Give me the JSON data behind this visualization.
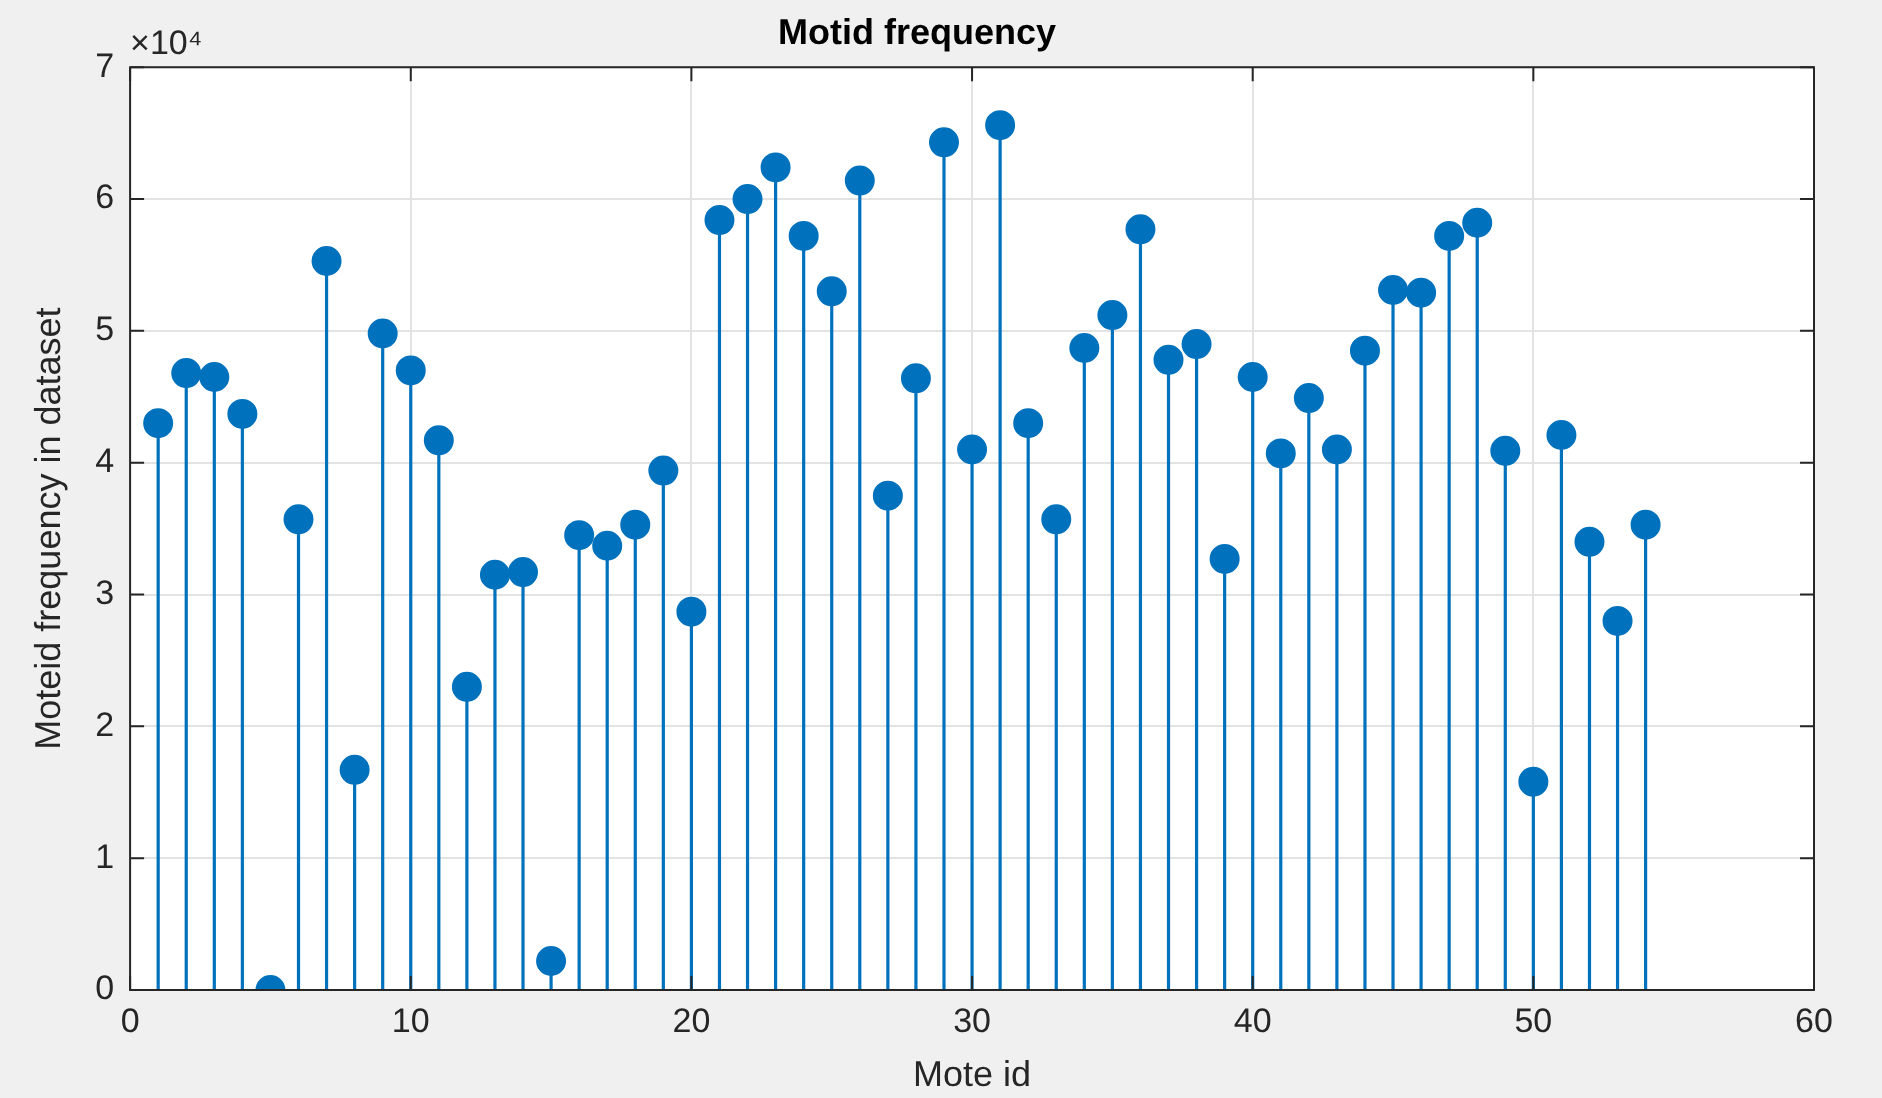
{
  "chart_data": {
    "type": "lollipop",
    "title": "Motid frequency",
    "xlabel": "Mote id",
    "ylabel": "Moteid frequency in dataset",
    "annotations": [
      "×10⁴"
    ],
    "x": [
      1,
      2,
      3,
      4,
      5,
      6,
      7,
      8,
      9,
      10,
      11,
      12,
      13,
      14,
      15,
      16,
      17,
      18,
      19,
      20,
      21,
      22,
      23,
      24,
      25,
      26,
      27,
      28,
      29,
      30,
      31,
      32,
      33,
      34,
      35,
      36,
      37,
      38,
      39,
      40,
      41,
      42,
      43,
      44,
      45,
      46,
      47,
      48,
      49,
      50,
      51,
      52,
      53,
      54
    ],
    "values": [
      4.3,
      4.68,
      4.65,
      4.37,
      0,
      3.57,
      5.53,
      1.67,
      4.98,
      4.7,
      4.17,
      2.3,
      3.15,
      3.17,
      0.22,
      3.45,
      3.37,
      3.53,
      3.94,
      2.87,
      5.84,
      6.0,
      6.24,
      5.72,
      5.3,
      6.14,
      3.75,
      4.64,
      6.43,
      4.1,
      6.56,
      4.3,
      3.57,
      4.87,
      5.12,
      5.77,
      4.78,
      4.9,
      3.27,
      4.65,
      4.07,
      4.49,
      4.1,
      4.85,
      5.31,
      5.29,
      5.72,
      5.82,
      4.09,
      1.58,
      4.21,
      3.4,
      2.8,
      3.53
    ],
    "color": "#0072bd",
    "marker": "circle",
    "xlim": [
      0,
      60
    ],
    "xticks": [
      0,
      10,
      20,
      30,
      40,
      50,
      60
    ],
    "ylim": [
      0,
      7
    ],
    "yticks": [
      0,
      1,
      2,
      3,
      4,
      5,
      6,
      7
    ],
    "grid": true
  }
}
